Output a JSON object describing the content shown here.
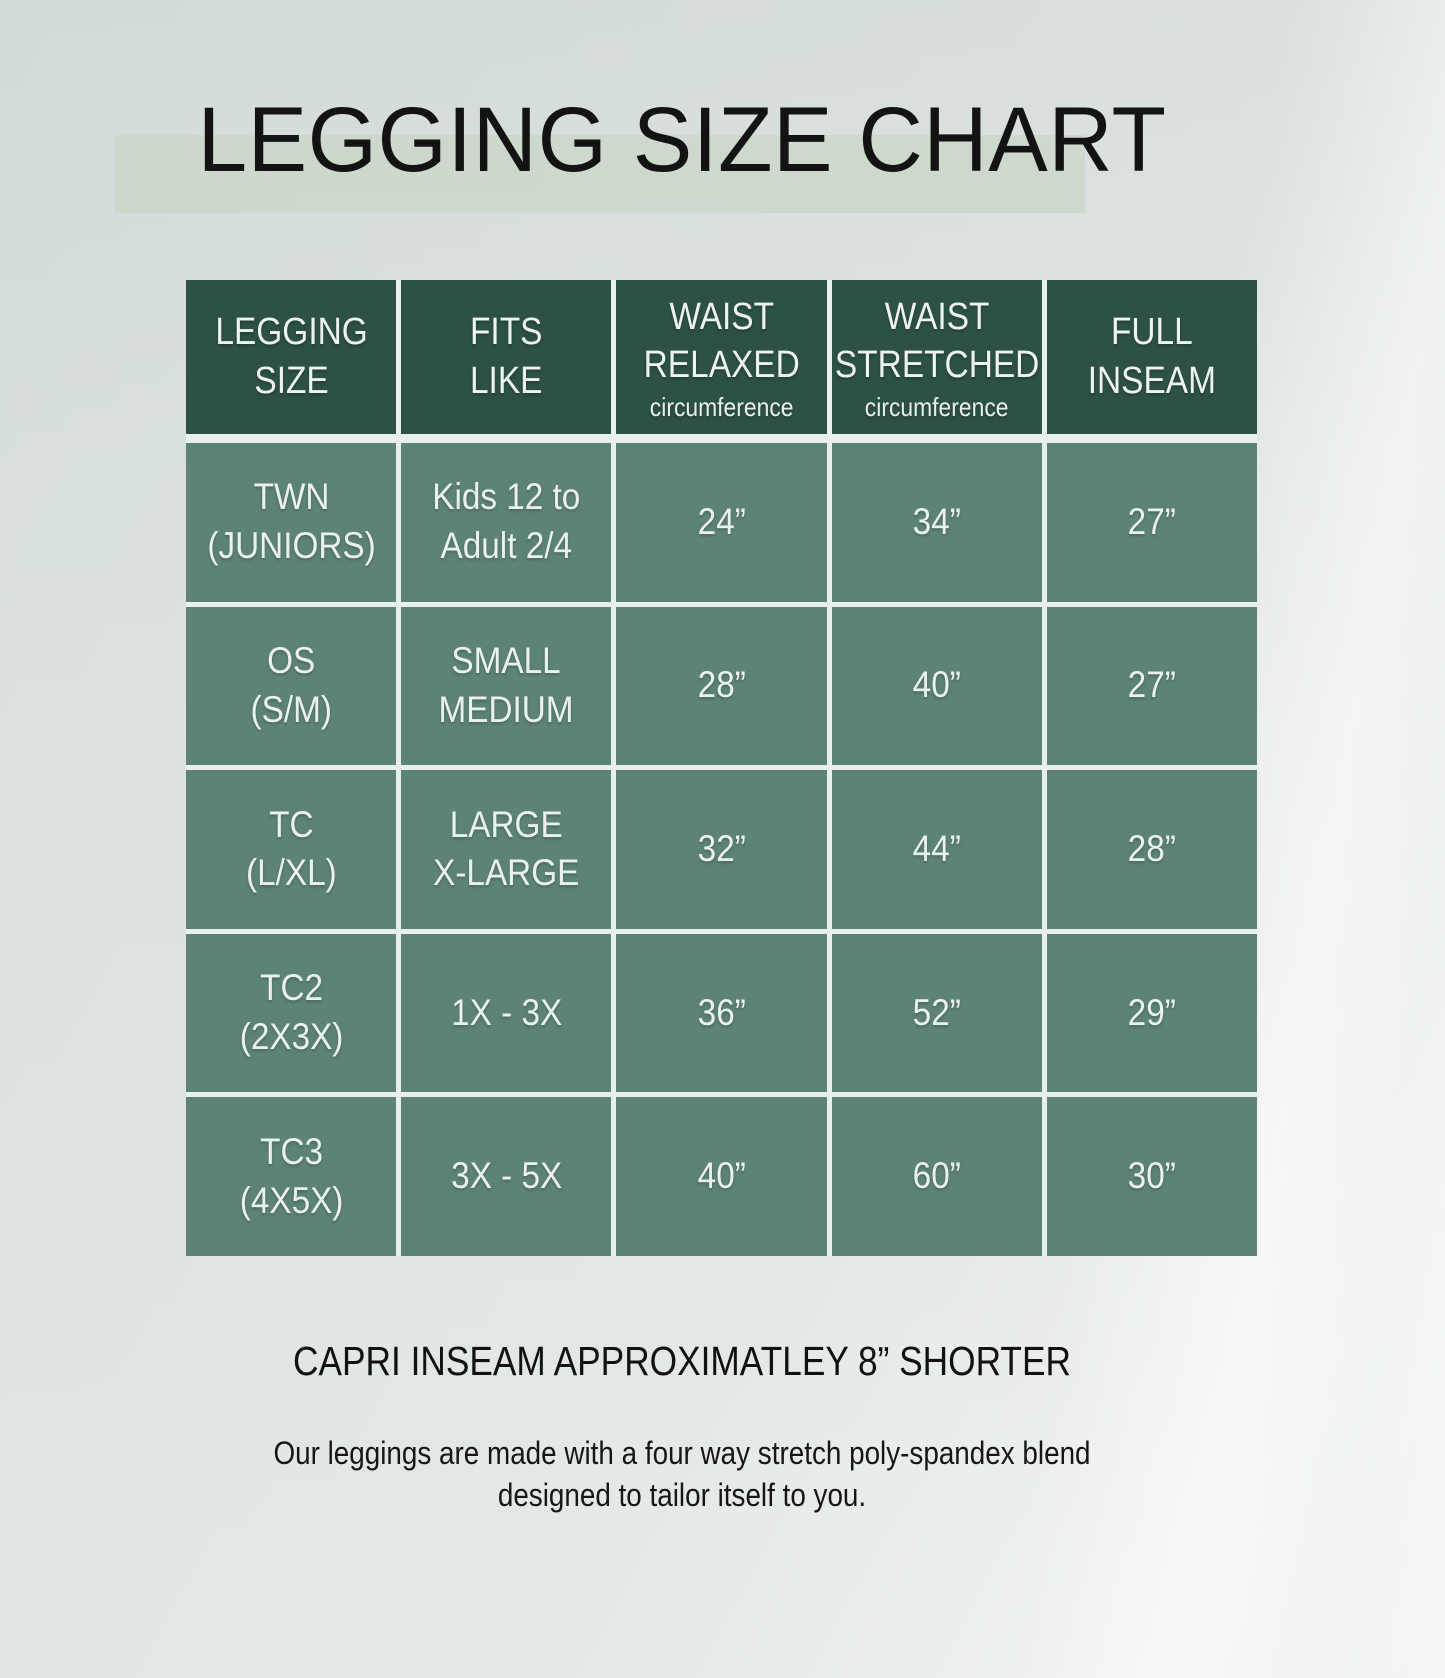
{
  "page": {
    "title": "LEGGING SIZE CHART",
    "caption": "CAPRI INSEAM APPROXIMATLEY 8” SHORTER",
    "description": "Our leggings are made with a four way stretch poly-spandex blend\ndesigned to tailor itself to you."
  },
  "table": {
    "header": [
      {
        "label": "LEGGING\nSIZE",
        "sub": ""
      },
      {
        "label": "FITS\nLIKE",
        "sub": ""
      },
      {
        "label": "WAIST\nRELAXED",
        "sub": "circumference"
      },
      {
        "label": "WAIST\nSTRETCHED",
        "sub": "circumference"
      },
      {
        "label": "FULL\nINSEAM",
        "sub": ""
      }
    ],
    "rows": [
      [
        "TWN\n(JUNIORS)",
        "Kids 12 to\nAdult 2/4",
        "24”",
        "34”",
        "27”"
      ],
      [
        "OS\n(S/M)",
        "SMALL\nMEDIUM",
        "28”",
        "40”",
        "27”"
      ],
      [
        "TC\n(L/XL)",
        "LARGE\nX-LARGE",
        "32”",
        "44”",
        "28”"
      ],
      [
        "TC2\n(2X3X)",
        "1X - 3X",
        "36”",
        "52”",
        "29”"
      ],
      [
        "TC3\n(4X5X)",
        "3X - 5X",
        "40”",
        "60”",
        "30”"
      ]
    ]
  },
  "colors": {
    "background": "#dce2e0",
    "header_bg": "#2d5144",
    "cell_bg": "#5c8375",
    "divider": "#e8efec",
    "title_highlight": "#cbd7c9",
    "text_dark": "#131313",
    "text_light": "#eef3f1"
  },
  "chart_data": {
    "type": "table",
    "title": "LEGGING SIZE CHART",
    "columns": [
      "LEGGING SIZE",
      "FITS LIKE",
      "WAIST RELAXED circumference",
      "WAIST STRETCHED circumference",
      "FULL INSEAM"
    ],
    "rows": [
      [
        "TWN (JUNIORS)",
        "Kids 12 to Adult 2/4",
        "24”",
        "34”",
        "27”"
      ],
      [
        "OS (S/M)",
        "SMALL MEDIUM",
        "28”",
        "40”",
        "27”"
      ],
      [
        "TC (L/XL)",
        "LARGE X-LARGE",
        "32”",
        "44”",
        "28”"
      ],
      [
        "TC2 (2X3X)",
        "1X - 3X",
        "36”",
        "52”",
        "29”"
      ],
      [
        "TC3 (4X5X)",
        "3X - 5X",
        "40”",
        "60”",
        "30”"
      ]
    ],
    "notes": [
      "CAPRI INSEAM APPROXIMATLEY 8” SHORTER",
      "Our leggings are made with a four way stretch poly-spandex blend designed to tailor itself to you."
    ],
    "units": "inches"
  }
}
